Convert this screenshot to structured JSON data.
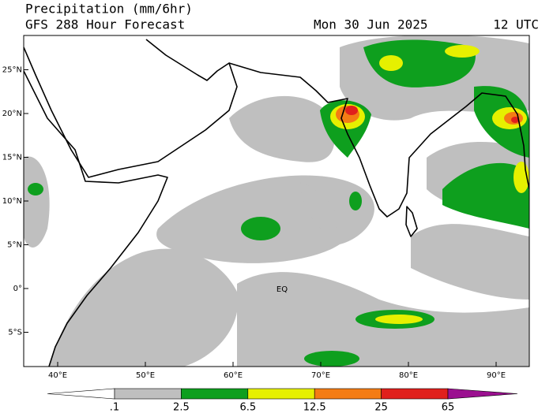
{
  "header": {
    "title": "Precipitation (mm/6hr)",
    "subtitle": "GFS 288 Hour Forecast",
    "date": "Mon 30 Jun 2025",
    "time": "12 UTC"
  },
  "map": {
    "lon_ticks": [
      {
        "value": 40,
        "label": "40°E"
      },
      {
        "value": 50,
        "label": "50°E"
      },
      {
        "value": 60,
        "label": "60°E"
      },
      {
        "value": 70,
        "label": "70°E"
      },
      {
        "value": 80,
        "label": "80°E"
      },
      {
        "value": 90,
        "label": "90°E"
      }
    ],
    "lat_ticks": [
      {
        "value": 25,
        "label": "25°N"
      },
      {
        "value": 20,
        "label": "20°N"
      },
      {
        "value": 15,
        "label": "15°N"
      },
      {
        "value": 10,
        "label": "10°N"
      },
      {
        "value": 5,
        "label": "5°N"
      },
      {
        "value": 0,
        "label": "0°"
      },
      {
        "value": -5,
        "label": "5°S"
      }
    ],
    "annotation": "EQ"
  },
  "colorbar": {
    "levels": [
      {
        "value": 0.1,
        "label": ".1"
      },
      2.5,
      6.5,
      12.5,
      25,
      65
    ],
    "colors": [
      "#ffffff",
      "#bfbfbf",
      "#0e9f1e",
      "#e6f000",
      "#f47c14",
      "#e0201c",
      "#9b1090"
    ]
  }
}
